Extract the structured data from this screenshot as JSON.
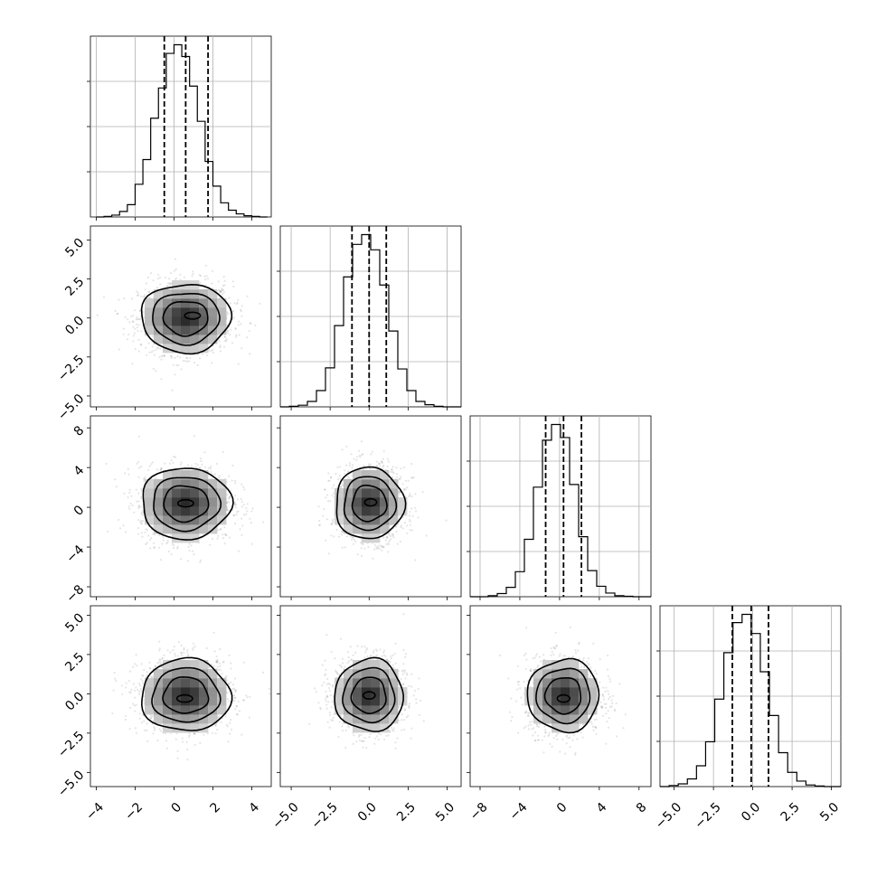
{
  "chart_data": {
    "type": "corner",
    "title": "",
    "colors": {
      "line": "#000000",
      "grid": "#b0b0b0",
      "scatter": "#444444",
      "density_dark": "#222222",
      "density_light": "#f0f0f0"
    },
    "grid": true,
    "quantiles": [
      0.16,
      0.5,
      0.84
    ],
    "parameters": [
      {
        "name": "",
        "range": [
          -4.3,
          5.0
        ],
        "ticks": [
          -4,
          -2,
          0,
          2,
          4
        ],
        "tick_labels": [
          "−4",
          "−2",
          "0",
          "2",
          "4"
        ],
        "quantile_values": [
          -0.5,
          0.6,
          1.75
        ],
        "histogram": {
          "edges": [
            -4.0,
            -3.6,
            -3.2,
            -2.8,
            -2.4,
            -2.0,
            -1.6,
            -1.2,
            -0.8,
            -0.4,
            0.0,
            0.4,
            0.8,
            1.2,
            1.6,
            2.0,
            2.4,
            2.8,
            3.2,
            3.6,
            4.0,
            4.4,
            4.8
          ],
          "counts": [
            0,
            1,
            3,
            9,
            20,
            53,
            93,
            160,
            209,
            265,
            279,
            260,
            212,
            155,
            90,
            50,
            23,
            11,
            5,
            2,
            1,
            0
          ]
        }
      },
      {
        "name": "",
        "range": [
          -5.7,
          5.9
        ],
        "ticks": [
          -5.0,
          -2.5,
          0.0,
          2.5,
          5.0
        ],
        "tick_labels": [
          "−5.0",
          "−2.5",
          "0.0",
          "2.5",
          "5.0"
        ],
        "quantile_values": [
          -1.1,
          0.0,
          1.1
        ],
        "histogram": {
          "edges": [
            -5.7,
            -5.12,
            -4.54,
            -3.96,
            -3.38,
            -2.8,
            -2.22,
            -1.64,
            -1.06,
            -0.48,
            0.1,
            0.68,
            1.26,
            1.84,
            2.42,
            3.0,
            3.58,
            4.16,
            4.74,
            5.32,
            5.9
          ],
          "counts": [
            0,
            1,
            3,
            10,
            30,
            72,
            150,
            240,
            300,
            318,
            290,
            225,
            140,
            70,
            30,
            10,
            4,
            1,
            0,
            0
          ]
        }
      },
      {
        "name": "",
        "range": [
          -9.0,
          9.2
        ],
        "ticks": [
          -8,
          -4,
          0,
          4,
          8
        ],
        "tick_labels": [
          "−8",
          "−4",
          "0",
          "4",
          "8"
        ],
        "quantile_values": [
          -1.4,
          0.4,
          2.2
        ],
        "histogram": {
          "edges": [
            -9.0,
            -8.09,
            -7.18,
            -6.27,
            -5.36,
            -4.45,
            -3.54,
            -2.63,
            -1.72,
            -0.81,
            0.1,
            1.01,
            1.92,
            2.83,
            3.74,
            4.65,
            5.56,
            6.47,
            7.38,
            8.29,
            9.2
          ],
          "counts": [
            0,
            0,
            2,
            6,
            18,
            48,
            110,
            210,
            300,
            330,
            305,
            215,
            115,
            50,
            20,
            7,
            2,
            1,
            0,
            0
          ]
        }
      },
      {
        "name": "",
        "range": [
          -5.9,
          5.6
        ],
        "ticks": [
          -5.0,
          -2.5,
          0.0,
          2.5,
          5.0
        ],
        "tick_labels": [
          "−5.0",
          "−2.5",
          "0.0",
          "2.5",
          "5.0"
        ],
        "quantile_values": [
          -1.3,
          -0.1,
          1.0
        ],
        "histogram": {
          "edges": [
            -5.9,
            -5.32,
            -4.74,
            -4.16,
            -3.58,
            -3.0,
            -2.42,
            -1.84,
            -1.26,
            -0.68,
            -0.1,
            0.48,
            1.06,
            1.64,
            2.22,
            2.8,
            3.38,
            3.96,
            4.54,
            5.12,
            5.6
          ],
          "counts": [
            0,
            2,
            5,
            14,
            38,
            82,
            160,
            245,
            300,
            315,
            280,
            210,
            130,
            62,
            26,
            10,
            3,
            1,
            0,
            0
          ]
        }
      }
    ],
    "pairs": [
      {
        "x": 0,
        "y": 1,
        "mean": [
          0.6,
          0.0
        ],
        "sd": [
          1.15,
          1.1
        ],
        "peak": [
          0.95,
          0.15
        ]
      },
      {
        "x": 0,
        "y": 2,
        "mean": [
          0.6,
          0.4
        ],
        "sd": [
          1.15,
          1.8
        ],
        "peak": [
          0.6,
          0.4
        ]
      },
      {
        "x": 1,
        "y": 2,
        "mean": [
          0.0,
          0.4
        ],
        "sd": [
          1.1,
          1.8
        ],
        "peak": [
          0.1,
          0.5
        ]
      },
      {
        "x": 0,
        "y": 3,
        "mean": [
          0.6,
          -0.1
        ],
        "sd": [
          1.15,
          1.15
        ],
        "peak": [
          0.55,
          -0.3
        ]
      },
      {
        "x": 1,
        "y": 3,
        "mean": [
          0.0,
          -0.1
        ],
        "sd": [
          1.1,
          1.15
        ],
        "peak": [
          0.0,
          -0.1
        ]
      },
      {
        "x": 2,
        "y": 3,
        "mean": [
          0.4,
          -0.1
        ],
        "sd": [
          1.8,
          1.15
        ],
        "peak": [
          0.4,
          -0.3
        ]
      }
    ]
  }
}
